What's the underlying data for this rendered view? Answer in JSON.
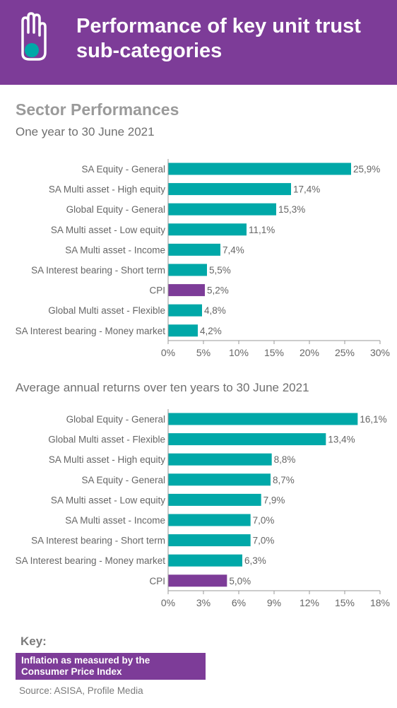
{
  "header": {
    "title": "Performance of key unit trust sub-categories"
  },
  "section_title": "Sector Performances",
  "colors": {
    "primary": "#00a8a8",
    "cpi": "#7d3c98",
    "header": "#7d3c98"
  },
  "chart_data": [
    {
      "type": "bar",
      "orientation": "horizontal",
      "title": "One year to 30 June 2021",
      "categories": [
        "SA Equity - General",
        "SA Multi asset - High equity",
        "Global Equity - General",
        "SA Multi asset - Low equity",
        "SA Multi asset - Income",
        "SA Interest bearing - Short term",
        "CPI",
        "Global Multi asset - Flexible",
        "SA Interest bearing - Money market"
      ],
      "values": [
        25.9,
        17.4,
        15.3,
        11.1,
        7.4,
        5.5,
        5.2,
        4.8,
        4.2
      ],
      "labels": [
        "25,9%",
        "17,4%",
        "15,3%",
        "11,1%",
        "7,4%",
        "5,5%",
        "5,2%",
        "4,8%",
        "4,2%"
      ],
      "xlim": [
        0,
        30
      ],
      "ticks": [
        0,
        5,
        10,
        15,
        20,
        25,
        30
      ],
      "tick_labels": [
        "0%",
        "5%",
        "10%",
        "15%",
        "20%",
        "25%",
        "30%"
      ],
      "highlight": "CPI"
    },
    {
      "type": "bar",
      "orientation": "horizontal",
      "title": "Average annual returns over ten years to 30 June 2021",
      "categories": [
        "Global Equity - General",
        "Global Multi asset - Flexible",
        "SA Multi asset - High equity",
        "SA Equity - General",
        "SA Multi asset - Low equity",
        "SA Multi asset - Income",
        "SA Interest bearing - Short term",
        "SA Interest bearing - Money market",
        "CPI"
      ],
      "values": [
        16.1,
        13.4,
        8.8,
        8.7,
        7.9,
        7.0,
        7.0,
        6.3,
        5.0
      ],
      "labels": [
        "16,1%",
        "13,4%",
        "8,8%",
        "8,7%",
        "7,9%",
        "7,0%",
        "7,0%",
        "6,3%",
        "5,0%"
      ],
      "xlim": [
        0,
        18
      ],
      "ticks": [
        0,
        3,
        6,
        9,
        12,
        15,
        18
      ],
      "tick_labels": [
        "0%",
        "3%",
        "6%",
        "9%",
        "12%",
        "15%",
        "18%"
      ],
      "highlight": "CPI"
    }
  ],
  "key": {
    "title": "Key:",
    "lines": [
      "Inflation as measured by the",
      "Consumer Price Index"
    ]
  },
  "source": "Source: ASISA, Profile Media"
}
